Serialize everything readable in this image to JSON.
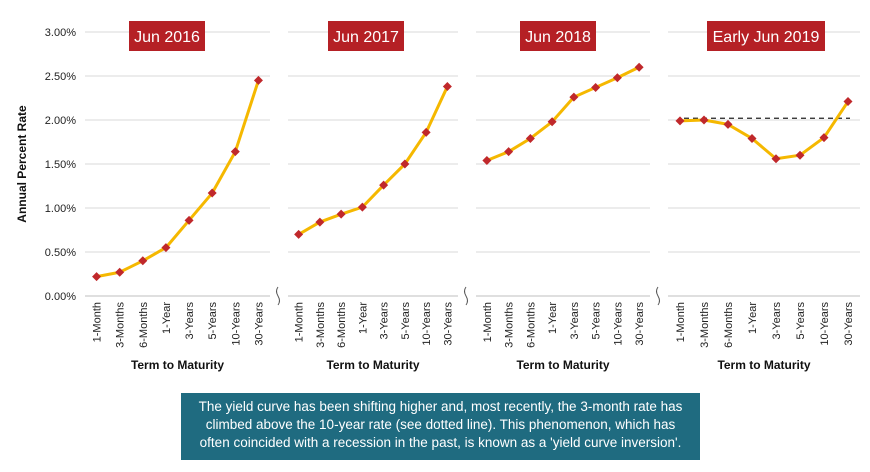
{
  "chart_data": {
    "type": "line",
    "ylabel": "Annual Percent Rate",
    "xlabel": "Term to Maturity",
    "ylim": [
      0,
      3.0
    ],
    "yticks": [
      "0.00%",
      "0.50%",
      "1.00%",
      "1.50%",
      "2.00%",
      "2.50%",
      "3.00%"
    ],
    "categories": [
      "1-Month",
      "3-Months",
      "6-Months",
      "1-Year",
      "3-Years",
      "5-Years",
      "10-Years",
      "30-Years"
    ],
    "grid": true,
    "line_color": "#f5b800",
    "marker_color": "#c0282b",
    "title_bg_color": "#b52025",
    "panels": [
      {
        "title": "Jun 2016",
        "values": [
          0.22,
          0.27,
          0.4,
          0.55,
          0.86,
          1.17,
          1.64,
          2.45
        ]
      },
      {
        "title": "Jun 2017",
        "values": [
          0.7,
          0.84,
          0.93,
          1.01,
          1.26,
          1.5,
          1.86,
          2.38
        ]
      },
      {
        "title": "Jun 2018",
        "values": [
          1.54,
          1.64,
          1.79,
          1.98,
          2.26,
          2.37,
          2.48,
          2.6
        ]
      },
      {
        "title": "Early Jun 2019",
        "values": [
          1.99,
          2.0,
          1.95,
          1.79,
          1.56,
          1.6,
          1.8,
          2.21
        ],
        "reference_line": 2.02
      }
    ]
  },
  "note": "The yield curve has been shifting higher and, most recently, the 3-month rate has climbed above the 10-year rate (see dotted line). This phenomenon, which has often coincided with a recession in the past, is known as a 'yield curve inversion'."
}
